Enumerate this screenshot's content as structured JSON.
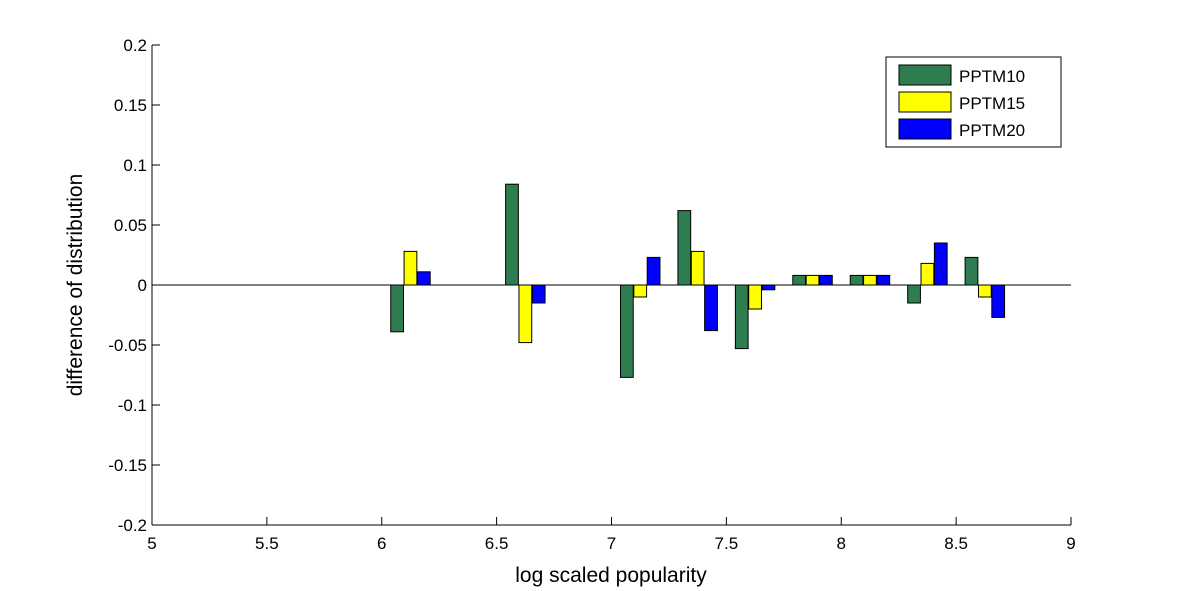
{
  "chart_data": {
    "type": "bar",
    "xlabel": "log scaled popularity",
    "ylabel": "difference of distribution",
    "xlim": [
      5,
      9
    ],
    "ylim": [
      -0.2,
      0.2
    ],
    "xticks": [
      "5",
      "5.5",
      "6",
      "6.5",
      "7",
      "7.5",
      "8",
      "8.5",
      "9"
    ],
    "yticks": [
      "0.2",
      "0.15",
      "0.1",
      "0.05",
      "0",
      "-0.05",
      "-0.1",
      "-0.15",
      "-0.2"
    ],
    "legend_position": "top-right",
    "x": [
      6.125,
      6.625,
      7.125,
      7.375,
      7.625,
      7.875,
      8.125,
      8.375,
      8.625
    ],
    "series": [
      {
        "name": "PPTM10",
        "color": "#2e7d50",
        "values": [
          -0.039,
          0.084,
          -0.077,
          0.062,
          -0.053,
          0.008,
          0.008,
          -0.015,
          0.023
        ]
      },
      {
        "name": "PPTM15",
        "color": "#ffff00",
        "values": [
          0.028,
          -0.048,
          -0.01,
          0.028,
          -0.02,
          0.008,
          0.008,
          0.018,
          -0.01
        ]
      },
      {
        "name": "PPTM20",
        "color": "#0000ff",
        "values": [
          0.011,
          -0.015,
          0.023,
          -0.038,
          -0.004,
          0.008,
          0.008,
          0.035,
          -0.027
        ]
      }
    ]
  }
}
